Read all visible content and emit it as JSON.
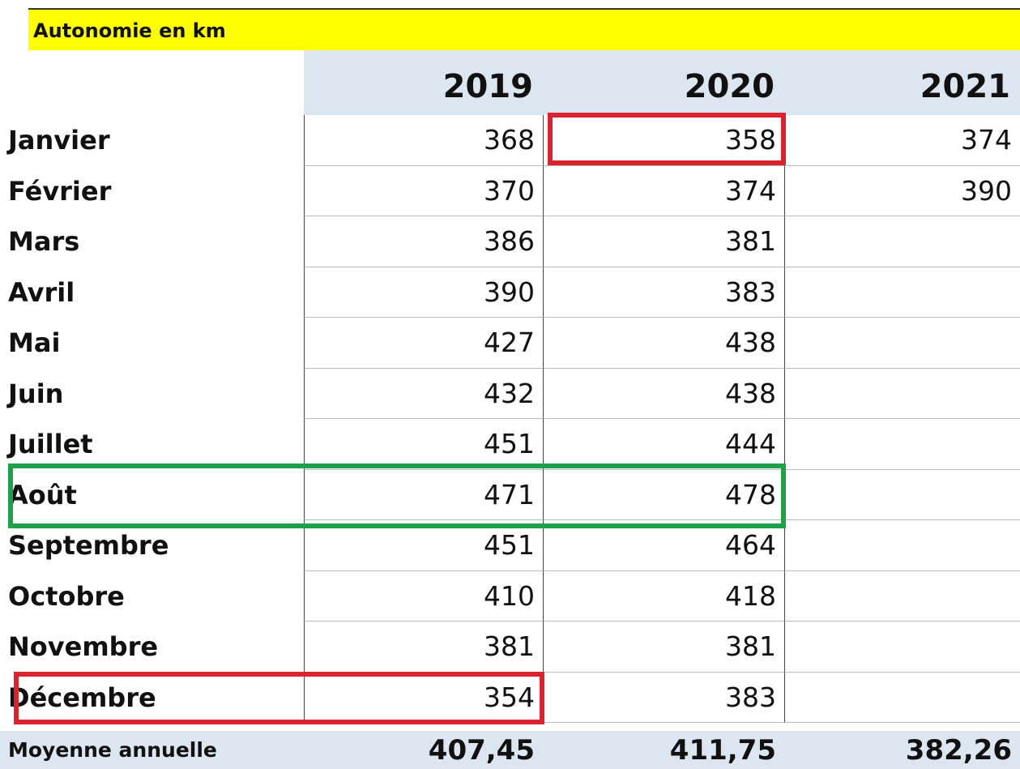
{
  "title": "Autonomie en km",
  "table": {
    "columns": [
      "2019",
      "2020",
      "2021"
    ],
    "rows": [
      {
        "label": "Janvier",
        "values": [
          "368",
          "358",
          "374"
        ]
      },
      {
        "label": "Février",
        "values": [
          "370",
          "374",
          "390"
        ]
      },
      {
        "label": "Mars",
        "values": [
          "386",
          "381",
          null
        ]
      },
      {
        "label": "Avril",
        "values": [
          "390",
          "383",
          null
        ]
      },
      {
        "label": "Mai",
        "values": [
          "427",
          "438",
          null
        ]
      },
      {
        "label": "Juin",
        "values": [
          "432",
          "438",
          null
        ]
      },
      {
        "label": "Juillet",
        "values": [
          "451",
          "444",
          null
        ]
      },
      {
        "label": "Août",
        "values": [
          "471",
          "478",
          null
        ]
      },
      {
        "label": "Septembre",
        "values": [
          "451",
          "464",
          null
        ]
      },
      {
        "label": "Octobre",
        "values": [
          "410",
          "418",
          null
        ]
      },
      {
        "label": "Novembre",
        "values": [
          "381",
          "381",
          null
        ]
      },
      {
        "label": "Décembre",
        "values": [
          "354",
          "383",
          null
        ]
      }
    ],
    "footer": {
      "label": "Moyenne annuelle",
      "values": [
        "407,45",
        "411,75",
        "382,26"
      ]
    }
  }
}
